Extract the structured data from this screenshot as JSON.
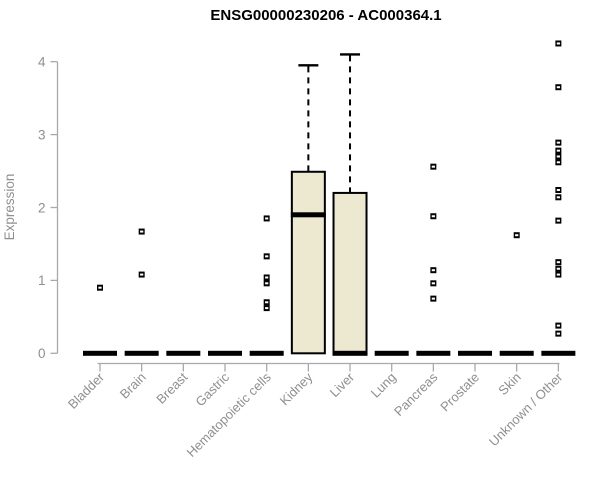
{
  "chart_data": {
    "type": "boxplot",
    "title": "ENSG00000230206 - AC000364.1",
    "ylabel": "Expression",
    "xlabel": "",
    "ylim": [
      0,
      4.3
    ],
    "yticks": [
      0,
      1,
      2,
      3,
      4
    ],
    "grid": false,
    "legend_position": "none",
    "categories": [
      "Bladder",
      "Brain",
      "Breast",
      "Gastric",
      "Hematopoietic cells",
      "Kidney",
      "Liver",
      "Lung",
      "Pancreas",
      "Prostate",
      "Skin",
      "Unknown / Other"
    ],
    "boxes": [
      {
        "category": "Bladder",
        "q1": 0,
        "median": 0,
        "q3": 0,
        "whisker_low": 0,
        "whisker_high": 0,
        "outliers": [
          0.9
        ]
      },
      {
        "category": "Brain",
        "q1": 0,
        "median": 0,
        "q3": 0,
        "whisker_low": 0,
        "whisker_high": 0,
        "outliers": [
          1.67,
          1.08
        ]
      },
      {
        "category": "Breast",
        "q1": 0,
        "median": 0,
        "q3": 0,
        "whisker_low": 0,
        "whisker_high": 0,
        "outliers": []
      },
      {
        "category": "Gastric",
        "q1": 0,
        "median": 0,
        "q3": 0,
        "whisker_low": 0,
        "whisker_high": 0,
        "outliers": []
      },
      {
        "category": "Hematopoietic cells",
        "q1": 0,
        "median": 0,
        "q3": 0,
        "whisker_low": 0,
        "whisker_high": 0,
        "outliers": [
          1.85,
          1.33,
          1.04,
          0.96,
          0.7,
          0.62
        ]
      },
      {
        "category": "Kidney",
        "q1": 0,
        "median": 1.9,
        "q3": 2.49,
        "whisker_low": 0,
        "whisker_high": 3.95,
        "outliers": []
      },
      {
        "category": "Liver",
        "q1": 0,
        "median": 0,
        "q3": 2.2,
        "whisker_low": 0,
        "whisker_high": 4.1,
        "outliers": []
      },
      {
        "category": "Lung",
        "q1": 0,
        "median": 0,
        "q3": 0,
        "whisker_low": 0,
        "whisker_high": 0,
        "outliers": []
      },
      {
        "category": "Pancreas",
        "q1": 0,
        "median": 0,
        "q3": 0,
        "whisker_low": 0,
        "whisker_high": 0,
        "outliers": [
          2.56,
          1.88,
          1.14,
          0.96,
          0.75
        ]
      },
      {
        "category": "Prostate",
        "q1": 0,
        "median": 0,
        "q3": 0,
        "whisker_low": 0,
        "whisker_high": 0,
        "outliers": []
      },
      {
        "category": "Skin",
        "q1": 0,
        "median": 0,
        "q3": 0,
        "whisker_low": 0,
        "whisker_high": 0,
        "outliers": [
          1.62
        ]
      },
      {
        "category": "Unknown / Other",
        "q1": 0,
        "median": 0,
        "q3": 0,
        "whisker_low": 0,
        "whisker_high": 0,
        "outliers": [
          4.25,
          3.65,
          2.89,
          2.78,
          2.7,
          2.62,
          2.24,
          2.14,
          1.82,
          1.25,
          1.16,
          1.08,
          0.38,
          0.27
        ]
      }
    ],
    "colors": {
      "box_fill": "#EDE8D0",
      "box_stroke": "#000000",
      "median_color": "#000000",
      "outlier_color": "#000000",
      "axis_line": "#A9A9A9",
      "axis_text": "#8F8F8F",
      "title_text": "#000000",
      "background": "#FFFFFF"
    }
  }
}
